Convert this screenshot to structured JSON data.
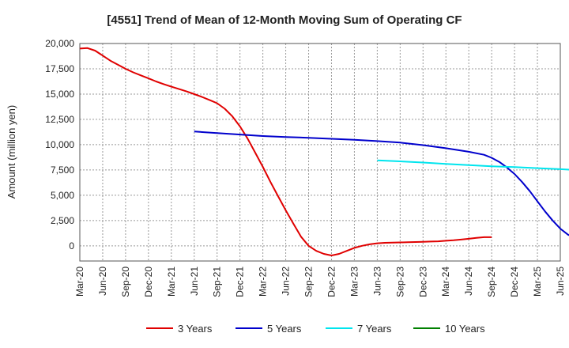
{
  "chart_data": {
    "type": "line",
    "title": "[4551]  Trend of Mean of 12-Month Moving Sum of Operating CF",
    "ylabel": "Amount (million yen)",
    "xlabel": "",
    "ylim": [
      -1500,
      20000
    ],
    "yticks": [
      0,
      2500,
      5000,
      7500,
      10000,
      12500,
      15000,
      17500,
      20000
    ],
    "ytick_labels": [
      "0",
      "2,500",
      "5,000",
      "7,500",
      "10,000",
      "12,500",
      "15,000",
      "17,500",
      "20,000"
    ],
    "x_start": "Mar-20",
    "x_end": "Jun-25",
    "xtick_labels": [
      "Mar-20",
      "Jun-20",
      "Sep-20",
      "Dec-20",
      "Mar-21",
      "Jun-21",
      "Sep-21",
      "Dec-21",
      "Mar-22",
      "Jun-22",
      "Sep-22",
      "Dec-22",
      "Mar-23",
      "Jun-23",
      "Sep-23",
      "Dec-23",
      "Mar-24",
      "Jun-24",
      "Sep-24",
      "Dec-24",
      "Mar-25",
      "Jun-25"
    ],
    "grid": true,
    "legend_position": "bottom",
    "series": [
      {
        "name": "3 Years",
        "color": "#e00000",
        "points": [
          [
            0,
            19500
          ],
          [
            1,
            19550
          ],
          [
            2,
            19300
          ],
          [
            3,
            18800
          ],
          [
            4,
            18300
          ],
          [
            5,
            17900
          ],
          [
            6,
            17500
          ],
          [
            7,
            17150
          ],
          [
            8,
            16850
          ],
          [
            9,
            16550
          ],
          [
            10,
            16250
          ],
          [
            11,
            15980
          ],
          [
            12,
            15730
          ],
          [
            13,
            15500
          ],
          [
            14,
            15260
          ],
          [
            15,
            15000
          ],
          [
            16,
            14720
          ],
          [
            17,
            14420
          ],
          [
            18,
            14100
          ],
          [
            19,
            13550
          ],
          [
            20,
            12800
          ],
          [
            21,
            11800
          ],
          [
            22,
            10600
          ],
          [
            23,
            9200
          ],
          [
            24,
            7800
          ],
          [
            25,
            6300
          ],
          [
            26,
            4900
          ],
          [
            27,
            3500
          ],
          [
            28,
            2200
          ],
          [
            29,
            900
          ],
          [
            30,
            0
          ],
          [
            31,
            -500
          ],
          [
            32,
            -800
          ],
          [
            33,
            -950
          ],
          [
            34,
            -800
          ],
          [
            35,
            -500
          ],
          [
            36,
            -200
          ],
          [
            37,
            0
          ],
          [
            38,
            150
          ],
          [
            39,
            250
          ],
          [
            40,
            300
          ],
          [
            41,
            320
          ],
          [
            42,
            340
          ],
          [
            43,
            360
          ],
          [
            44,
            380
          ],
          [
            45,
            400
          ],
          [
            46,
            420
          ],
          [
            47,
            450
          ],
          [
            48,
            500
          ],
          [
            49,
            550
          ],
          [
            50,
            620
          ],
          [
            51,
            700
          ],
          [
            52,
            780
          ],
          [
            53,
            850
          ],
          [
            54,
            850
          ]
        ]
      },
      {
        "name": "5 Years",
        "color": "#0000cc",
        "points": [
          [
            15,
            11300
          ],
          [
            18,
            11150
          ],
          [
            21,
            11000
          ],
          [
            24,
            10850
          ],
          [
            27,
            10750
          ],
          [
            30,
            10680
          ],
          [
            33,
            10580
          ],
          [
            36,
            10480
          ],
          [
            39,
            10350
          ],
          [
            42,
            10200
          ],
          [
            45,
            9950
          ],
          [
            48,
            9650
          ],
          [
            51,
            9300
          ],
          [
            53,
            9000
          ],
          [
            54,
            8700
          ],
          [
            55,
            8300
          ],
          [
            56,
            7750
          ],
          [
            57,
            7100
          ],
          [
            58,
            6300
          ],
          [
            59,
            5400
          ],
          [
            60,
            4400
          ],
          [
            61,
            3400
          ],
          [
            62,
            2500
          ],
          [
            63,
            1700
          ],
          [
            64,
            1100
          ],
          [
            65,
            750
          ]
        ]
      },
      {
        "name": "7 Years",
        "color": "#00e5ee",
        "points": [
          [
            39,
            8450
          ],
          [
            42,
            8350
          ],
          [
            45,
            8230
          ],
          [
            48,
            8100
          ],
          [
            51,
            7980
          ],
          [
            54,
            7870
          ],
          [
            57,
            7780
          ],
          [
            60,
            7680
          ],
          [
            63,
            7580
          ],
          [
            65,
            7500
          ]
        ]
      },
      {
        "name": "10 Years",
        "color": "#008000",
        "points": []
      }
    ]
  }
}
